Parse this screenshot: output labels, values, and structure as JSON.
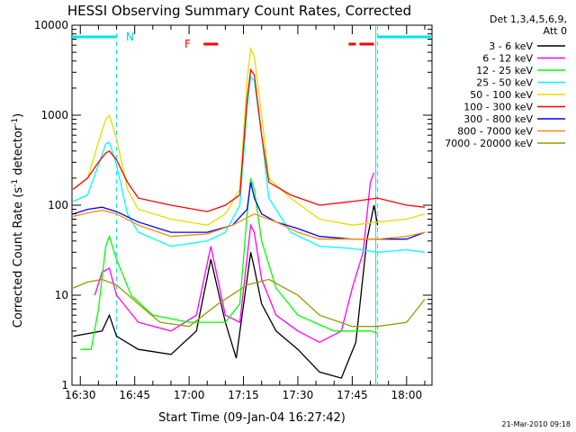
{
  "chart_data": {
    "type": "line",
    "title": "HESSI Observing Summary Count Rates, Corrected",
    "xlabel": "Start Time (09-Jan-04 16:27:42)",
    "ylabel": "Corrected Count Rate (s⁻¹ detector⁻¹)",
    "ylabel_base": "Corrected Count Rate (s",
    "ylabel_sup1": "-1",
    "ylabel_mid": " detector",
    "ylabel_sup2": "-1",
    "ylabel_end": ")",
    "y_scale": "log",
    "ylim": [
      1,
      10000
    ],
    "xlim": [
      "16:27:42",
      "18:07"
    ],
    "x_ticks": [
      "16:30",
      "16:45",
      "17:00",
      "17:15",
      "17:30",
      "17:45",
      "18:00"
    ],
    "y_ticks": [
      "1",
      "10",
      "100",
      "1000",
      "10000"
    ],
    "legend_header": [
      "Det 1,3,4,5,6,9,",
      "Att 0"
    ],
    "legend_placement": "right",
    "footer_date": "21-Mar-2010 09:18",
    "annotations": {
      "night_label": "N",
      "flare_label": "F",
      "night_periods": [
        [
          "16:27:42",
          "16:40"
        ],
        [
          "17:52",
          "18:07"
        ]
      ],
      "flare_periods": [
        [
          "17:04",
          "17:08"
        ],
        [
          "17:44",
          "17:46"
        ],
        [
          "17:47",
          "17:51"
        ]
      ]
    },
    "series": [
      {
        "name": "3 - 6 keV",
        "color": "#000000",
        "x": [
          "16:28",
          "16:36",
          "16:38",
          "16:40",
          "16:46",
          "16:55",
          "17:02",
          "17:06",
          "17:10",
          "17:13",
          "17:17",
          "17:18",
          "17:20",
          "17:24",
          "17:30",
          "17:36",
          "17:42",
          "17:46",
          "17:49",
          "17:51",
          "17:52"
        ],
        "y": [
          3.5,
          4,
          6,
          3.5,
          2.5,
          2.2,
          4,
          25,
          5,
          2,
          30,
          20,
          8,
          4,
          2.5,
          1.4,
          1.2,
          3,
          40,
          100,
          60
        ]
      },
      {
        "name": "6 - 12 keV",
        "color": "#ff00ff",
        "x": [
          "16:34",
          "16:36",
          "16:38",
          "16:40",
          "16:46",
          "16:55",
          "17:02",
          "17:06",
          "17:10",
          "17:14",
          "17:17",
          "17:18",
          "17:20",
          "17:24",
          "17:30",
          "17:36",
          "17:42",
          "17:45",
          "17:48",
          "17:50",
          "17:51"
        ],
        "y": [
          10,
          18,
          20,
          10,
          5,
          4,
          6,
          35,
          6,
          5,
          60,
          50,
          15,
          6,
          4,
          3,
          4,
          12,
          30,
          180,
          230
        ]
      },
      {
        "name": "12 - 25 keV",
        "color": "#00ff00",
        "x": [
          "16:30",
          "16:33",
          "16:35",
          "16:37",
          "16:38",
          "16:40",
          "16:44",
          "16:50",
          "17:00",
          "17:10",
          "17:14",
          "17:16",
          "17:17",
          "17:18",
          "17:20",
          "17:24",
          "17:30",
          "17:40",
          "17:50",
          "17:52"
        ],
        "y": [
          2.5,
          2.5,
          7,
          35,
          45,
          25,
          10,
          6,
          5,
          5,
          8,
          80,
          200,
          150,
          40,
          12,
          6,
          4,
          4,
          3.8
        ]
      },
      {
        "name": "25 - 50 keV",
        "color": "#00ffff",
        "x": [
          "16:28",
          "16:32",
          "16:35",
          "16:37",
          "16:38",
          "16:40",
          "16:43",
          "16:46",
          "16:55",
          "17:05",
          "17:10",
          "17:14",
          "17:16",
          "17:17",
          "17:18",
          "17:20",
          "17:22",
          "17:28",
          "17:36",
          "17:45",
          "17:52",
          "18:00",
          "18:05"
        ],
        "y": [
          110,
          130,
          280,
          480,
          500,
          280,
          80,
          50,
          35,
          40,
          50,
          100,
          1200,
          2700,
          2400,
          600,
          120,
          50,
          35,
          33,
          30,
          32,
          30
        ]
      },
      {
        "name": "50 - 100 keV",
        "color": "#e0e000",
        "x": [
          "16:28",
          "16:32",
          "16:35",
          "16:37",
          "16:38",
          "16:40",
          "16:43",
          "16:46",
          "16:55",
          "17:05",
          "17:10",
          "17:14",
          "17:16",
          "17:17",
          "17:18",
          "17:20",
          "17:22",
          "17:28",
          "17:36",
          "17:45",
          "17:52",
          "18:00",
          "18:05"
        ],
        "y": [
          150,
          200,
          500,
          900,
          1000,
          550,
          150,
          90,
          70,
          60,
          80,
          150,
          2500,
          5500,
          4500,
          1000,
          200,
          120,
          70,
          60,
          65,
          70,
          80
        ]
      },
      {
        "name": "100 - 300 keV",
        "color": "#ff0000",
        "x": [
          "16:28",
          "16:32",
          "16:35",
          "16:37",
          "16:38",
          "16:40",
          "16:43",
          "16:46",
          "16:55",
          "17:05",
          "17:10",
          "17:14",
          "17:16",
          "17:17",
          "17:18",
          "17:20",
          "17:22",
          "17:28",
          "17:36",
          "17:45",
          "17:52",
          "18:00",
          "18:05"
        ],
        "y": [
          150,
          200,
          300,
          380,
          400,
          320,
          180,
          120,
          100,
          85,
          100,
          130,
          1500,
          3200,
          2800,
          600,
          180,
          130,
          100,
          110,
          120,
          100,
          95
        ]
      },
      {
        "name": "300 - 800 keV",
        "color": "#0000ff",
        "x": [
          "16:28",
          "16:32",
          "16:36",
          "16:40",
          "16:46",
          "16:55",
          "17:05",
          "17:12",
          "17:16",
          "17:17",
          "17:18",
          "17:20",
          "17:24",
          "17:30",
          "17:36",
          "17:45",
          "17:52",
          "18:00",
          "18:05"
        ],
        "y": [
          80,
          90,
          95,
          85,
          65,
          50,
          50,
          60,
          90,
          180,
          120,
          80,
          65,
          55,
          45,
          42,
          42,
          42,
          50
        ]
      },
      {
        "name": "800 - 7000 keV",
        "color": "#ff8c00",
        "x": [
          "16:28",
          "16:32",
          "16:36",
          "16:40",
          "16:46",
          "16:55",
          "17:05",
          "17:12",
          "17:18",
          "17:24",
          "17:30",
          "17:36",
          "17:45",
          "17:52",
          "18:00",
          "18:05"
        ],
        "y": [
          75,
          82,
          88,
          80,
          60,
          45,
          48,
          60,
          80,
          65,
          50,
          42,
          42,
          42,
          45,
          50
        ]
      },
      {
        "name": "7000 - 20000 keV",
        "color": "#999900",
        "x": [
          "16:28",
          "16:32",
          "16:36",
          "16:40",
          "16:46",
          "16:52",
          "17:00",
          "17:08",
          "17:16",
          "17:22",
          "17:30",
          "17:36",
          "17:45",
          "17:52",
          "18:00",
          "18:05"
        ],
        "y": [
          12,
          14,
          15,
          13,
          8,
          5,
          4.5,
          8,
          13,
          15,
          10,
          6,
          4.5,
          4.5,
          5,
          9
        ]
      }
    ]
  }
}
